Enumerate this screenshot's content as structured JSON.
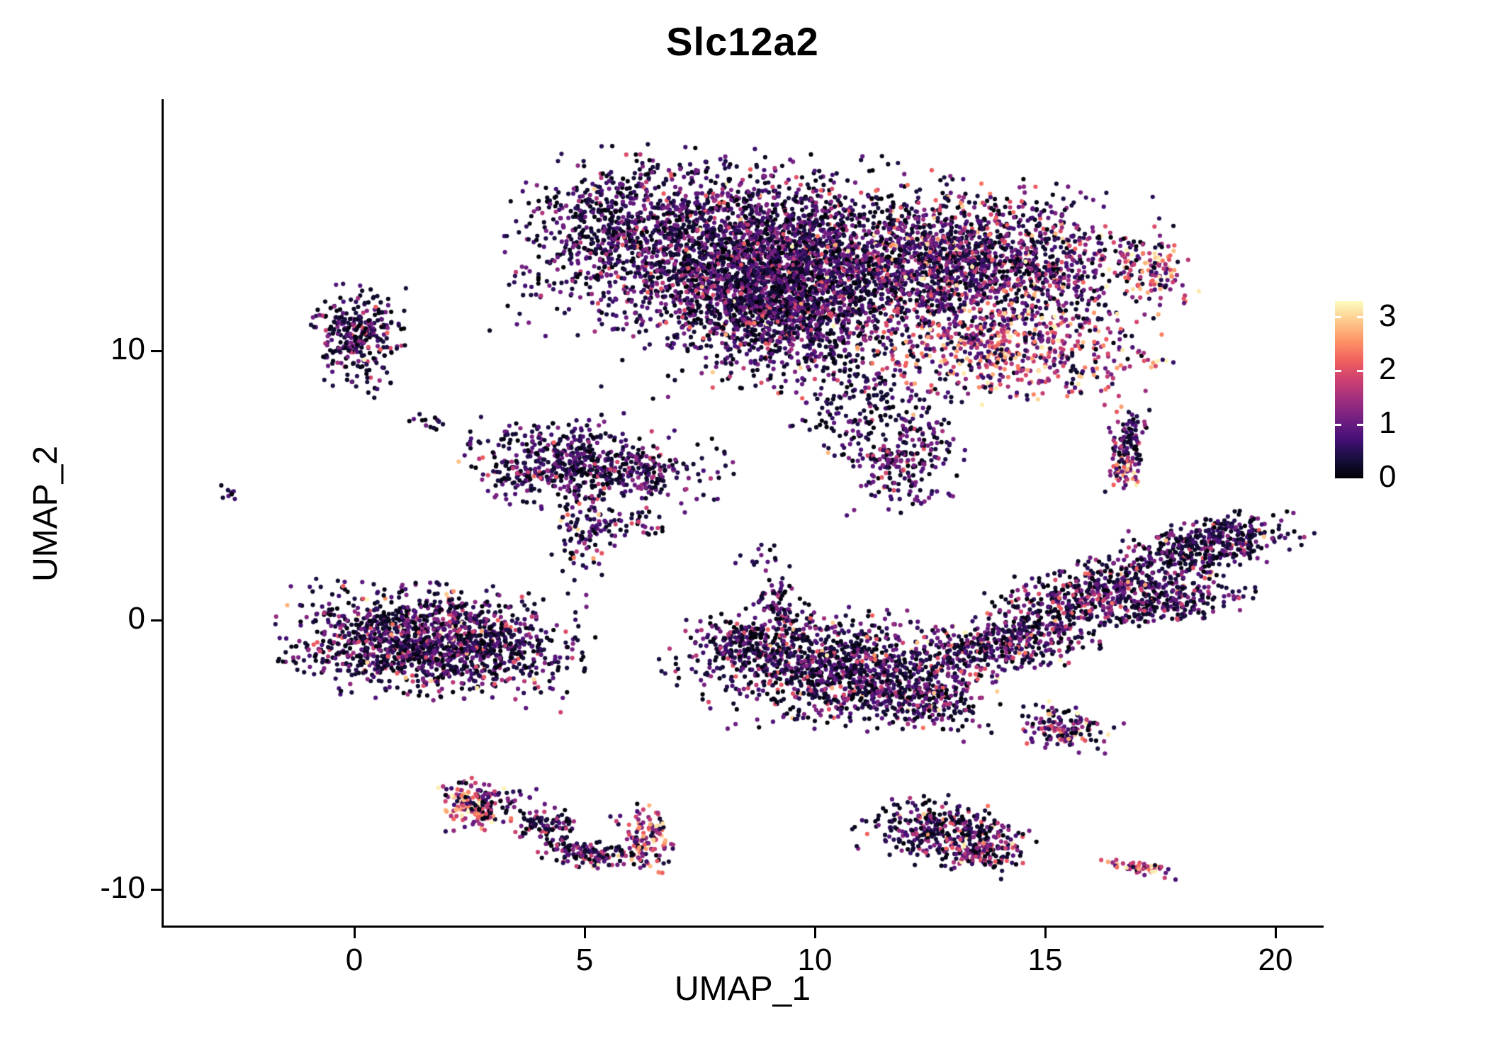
{
  "chart_data": {
    "type": "scatter",
    "title": "Slc12a2",
    "xlabel": "UMAP_1",
    "ylabel": "UMAP_2",
    "xlim": [
      -4.2,
      21.0
    ],
    "ylim": [
      -11.5,
      19.3
    ],
    "x_ticks": [
      0,
      5,
      10,
      15,
      20
    ],
    "y_ticks": [
      -10,
      0,
      10
    ],
    "grid": false,
    "point_radius_px": 3.1,
    "legend": {
      "position": "right",
      "label_values": [
        0,
        1,
        2,
        3
      ],
      "vmin": 0,
      "vmax": 3.3,
      "colormap": "magma"
    },
    "colormap_stops": [
      "#000004",
      "#180f3e",
      "#451077",
      "#721f81",
      "#9f2f7f",
      "#cd4071",
      "#f1605d",
      "#fd9567",
      "#fec98d",
      "#fcfdbf"
    ],
    "expression_bands": [
      [
        0,
        0.4
      ],
      [
        0.4,
        1.3
      ],
      [
        1.3,
        2.2
      ],
      [
        2.2,
        3.3
      ]
    ],
    "clusters": [
      {
        "name": "top-left-lobe",
        "cx": 8.2,
        "cy": 13.8,
        "sx": 2.0,
        "sy": 1.5,
        "rot": -5,
        "n": 2400,
        "w": [
          0.42,
          0.47,
          0.1,
          0.01
        ]
      },
      {
        "name": "top-left-lobe-core",
        "cx": 9.2,
        "cy": 11.8,
        "sx": 1.2,
        "sy": 1.3,
        "rot": 0,
        "n": 1300,
        "w": [
          0.45,
          0.45,
          0.09,
          0.01
        ]
      },
      {
        "name": "top-left-sparse-edge",
        "cx": 5.6,
        "cy": 14.6,
        "sx": 0.9,
        "sy": 1.2,
        "rot": 0,
        "n": 240,
        "w": [
          0.65,
          0.31,
          0.04,
          0
        ]
      },
      {
        "name": "top-right-lobe",
        "cx": 13.4,
        "cy": 13.2,
        "sx": 1.8,
        "sy": 1.3,
        "rot": -8,
        "n": 1700,
        "w": [
          0.34,
          0.41,
          0.2,
          0.05
        ]
      },
      {
        "name": "top-right-hotband",
        "cx": 14.2,
        "cy": 9.9,
        "sx": 1.5,
        "sy": 0.8,
        "rot": -10,
        "n": 520,
        "w": [
          0.12,
          0.26,
          0.37,
          0.25
        ]
      },
      {
        "name": "top-right-tip",
        "cx": 17.4,
        "cy": 13.0,
        "sx": 0.4,
        "sy": 0.55,
        "rot": 20,
        "n": 100,
        "w": [
          0.12,
          0.22,
          0.38,
          0.28
        ]
      },
      {
        "name": "top-mid-sparse",
        "cx": 10.6,
        "cy": 12.3,
        "sx": 2.3,
        "sy": 2.0,
        "rot": 0,
        "n": 480,
        "w": [
          0.55,
          0.35,
          0.08,
          0.02
        ]
      },
      {
        "name": "top-bottom-tail",
        "cx": 10.9,
        "cy": 7.9,
        "sx": 0.7,
        "sy": 1.1,
        "rot": 0,
        "n": 190,
        "w": [
          0.5,
          0.4,
          0.09,
          0.01
        ]
      },
      {
        "name": "top-bottom-blob",
        "cx": 11.9,
        "cy": 5.6,
        "sx": 0.55,
        "sy": 0.75,
        "rot": 0,
        "n": 170,
        "w": [
          0.45,
          0.44,
          0.1,
          0.01
        ]
      },
      {
        "name": "below-top-right-sparse",
        "cx": 12.4,
        "cy": 7.1,
        "sx": 0.45,
        "sy": 0.8,
        "rot": 0,
        "n": 60,
        "w": [
          0.55,
          0.37,
          0.08,
          0
        ]
      },
      {
        "name": "upper-left-small",
        "cx": 0.1,
        "cy": 10.5,
        "sx": 0.45,
        "sy": 0.85,
        "rot": 0,
        "n": 300,
        "w": [
          0.52,
          0.4,
          0.07,
          0.01
        ]
      },
      {
        "name": "below-upper-left-dots",
        "cx": 0.4,
        "cy": 8.5,
        "sx": 0.15,
        "sy": 0.25,
        "rot": 0,
        "n": 5,
        "w": [
          0.5,
          0.5,
          0,
          0
        ]
      },
      {
        "name": "far-left-dot",
        "cx": -2.7,
        "cy": 4.7,
        "sx": 0.09,
        "sy": 0.13,
        "rot": 0,
        "n": 8,
        "w": [
          0.4,
          0.5,
          0.1,
          0
        ]
      },
      {
        "name": "left-sparse-pair",
        "cx": 1.6,
        "cy": 7.4,
        "sx": 0.28,
        "sy": 0.18,
        "rot": 0,
        "n": 14,
        "w": [
          0.55,
          0.4,
          0.05,
          0
        ]
      },
      {
        "name": "mid-left-cluster",
        "cx": 4.6,
        "cy": 5.8,
        "sx": 0.95,
        "sy": 0.7,
        "rot": -5,
        "n": 540,
        "w": [
          0.48,
          0.42,
          0.09,
          0.01
        ]
      },
      {
        "name": "mid-left-east",
        "cx": 6.3,
        "cy": 5.4,
        "sx": 0.4,
        "sy": 0.45,
        "rot": 0,
        "n": 90,
        "w": [
          0.45,
          0.45,
          0.1,
          0
        ]
      },
      {
        "name": "mid-left-tail",
        "cx": 5.0,
        "cy": 3.3,
        "sx": 0.3,
        "sy": 0.9,
        "rot": 0,
        "n": 100,
        "w": [
          0.45,
          0.37,
          0.15,
          0.03
        ]
      },
      {
        "name": "mid-left-sparse-south",
        "cx": 6.0,
        "cy": 3.6,
        "sx": 0.4,
        "sy": 0.3,
        "rot": 0,
        "n": 40,
        "w": [
          0.55,
          0.38,
          0.07,
          0
        ]
      },
      {
        "name": "mid-left-sparse-east",
        "cx": 7.3,
        "cy": 5.5,
        "sx": 0.4,
        "sy": 0.7,
        "rot": 0,
        "n": 35,
        "w": [
          0.6,
          0.33,
          0.07,
          0
        ]
      },
      {
        "name": "left-main",
        "cx": 1.7,
        "cy": -0.8,
        "sx": 1.4,
        "sy": 0.9,
        "rot": -8,
        "n": 1500,
        "w": [
          0.5,
          0.39,
          0.09,
          0.02
        ]
      },
      {
        "name": "center-main",
        "cx": 10.4,
        "cy": -1.8,
        "sx": 1.2,
        "sy": 0.95,
        "rot": 0,
        "n": 950,
        "w": [
          0.48,
          0.39,
          0.11,
          0.02
        ]
      },
      {
        "name": "center-arm",
        "cx": 8.6,
        "cy": -0.7,
        "sx": 0.7,
        "sy": 0.5,
        "rot": 25,
        "n": 200,
        "w": [
          0.5,
          0.4,
          0.09,
          0.01
        ]
      },
      {
        "name": "center-spike",
        "cx": 9.2,
        "cy": 0.7,
        "sx": 0.22,
        "sy": 0.55,
        "rot": 0,
        "n": 60,
        "w": [
          0.55,
          0.4,
          0.05,
          0
        ]
      },
      {
        "name": "center-east",
        "cx": 12.3,
        "cy": -2.9,
        "sx": 0.8,
        "sy": 0.6,
        "rot": -15,
        "n": 280,
        "w": [
          0.42,
          0.4,
          0.14,
          0.04
        ]
      },
      {
        "name": "center-west-sparse",
        "cx": 7.4,
        "cy": -1.6,
        "sx": 0.5,
        "sy": 0.4,
        "rot": 0,
        "n": 25,
        "w": [
          0.6,
          0.35,
          0.05,
          0
        ]
      },
      {
        "name": "center-north-sparse",
        "cx": 8.9,
        "cy": 2.4,
        "sx": 0.3,
        "sy": 0.3,
        "rot": 0,
        "n": 14,
        "w": [
          0.55,
          0.4,
          0.05,
          0
        ]
      },
      {
        "name": "right-band-1",
        "cx": 14.1,
        "cy": -0.9,
        "sx": 1.1,
        "sy": 0.5,
        "rot": 22,
        "n": 460,
        "w": [
          0.44,
          0.4,
          0.13,
          0.03
        ]
      },
      {
        "name": "right-band-2",
        "cx": 16.4,
        "cy": 1.1,
        "sx": 1.25,
        "sy": 0.55,
        "rot": 25,
        "n": 560,
        "w": [
          0.47,
          0.4,
          0.11,
          0.02
        ]
      },
      {
        "name": "right-band-3",
        "cx": 18.6,
        "cy": 2.9,
        "sx": 0.9,
        "sy": 0.45,
        "rot": 20,
        "n": 360,
        "w": [
          0.5,
          0.4,
          0.09,
          0.01
        ]
      },
      {
        "name": "right-band-prong",
        "cx": 17.8,
        "cy": 0.5,
        "sx": 0.8,
        "sy": 0.3,
        "rot": 15,
        "n": 170,
        "w": [
          0.5,
          0.4,
          0.1,
          0
        ]
      },
      {
        "name": "right-small-column-top",
        "cx": 16.85,
        "cy": 6.7,
        "sx": 0.2,
        "sy": 0.5,
        "rot": 0,
        "n": 85,
        "w": [
          0.42,
          0.46,
          0.12,
          0
        ]
      },
      {
        "name": "right-small-column-bottom",
        "cx": 16.7,
        "cy": 5.4,
        "sx": 0.22,
        "sy": 0.35,
        "rot": 0,
        "n": 55,
        "w": [
          0.12,
          0.24,
          0.34,
          0.3
        ]
      },
      {
        "name": "right-lower-small",
        "cx": 15.4,
        "cy": -4.0,
        "sx": 0.5,
        "sy": 0.35,
        "rot": -20,
        "n": 140,
        "w": [
          0.3,
          0.3,
          0.25,
          0.15
        ]
      },
      {
        "name": "bottom-left-hot",
        "cx": 2.6,
        "cy": -6.9,
        "sx": 0.35,
        "sy": 0.42,
        "rot": 0,
        "n": 170,
        "w": [
          0.2,
          0.25,
          0.3,
          0.25
        ]
      },
      {
        "name": "bottom-left-neighbors",
        "cx": 3.5,
        "cy": -6.7,
        "sx": 0.4,
        "sy": 0.25,
        "rot": 0,
        "n": 18,
        "w": [
          0.55,
          0.35,
          0.1,
          0
        ]
      },
      {
        "name": "bottom-arc-1",
        "cx": 4.1,
        "cy": -7.6,
        "sx": 0.35,
        "sy": 0.3,
        "rot": -40,
        "n": 90,
        "w": [
          0.5,
          0.36,
          0.12,
          0.02
        ]
      },
      {
        "name": "bottom-arc-2",
        "cx": 5.1,
        "cy": -8.7,
        "sx": 0.5,
        "sy": 0.25,
        "rot": -12,
        "n": 130,
        "w": [
          0.45,
          0.36,
          0.15,
          0.04
        ]
      },
      {
        "name": "bottom-arc-3",
        "cx": 6.3,
        "cy": -8.1,
        "sx": 0.3,
        "sy": 0.55,
        "rot": 8,
        "n": 120,
        "w": [
          0.18,
          0.3,
          0.3,
          0.22
        ]
      },
      {
        "name": "bottom-center",
        "cx": 12.8,
        "cy": -7.9,
        "sx": 0.85,
        "sy": 0.55,
        "rot": -18,
        "n": 380,
        "w": [
          0.52,
          0.34,
          0.1,
          0.04
        ]
      },
      {
        "name": "bottom-center-tail",
        "cx": 13.6,
        "cy": -8.7,
        "sx": 0.38,
        "sy": 0.3,
        "rot": -20,
        "n": 85,
        "w": [
          0.3,
          0.35,
          0.25,
          0.1
        ]
      },
      {
        "name": "bottom-right-strip",
        "cx": 17.1,
        "cy": -9.2,
        "sx": 0.4,
        "sy": 0.13,
        "rot": -15,
        "n": 48,
        "w": [
          0.1,
          0.22,
          0.38,
          0.3
        ]
      }
    ]
  }
}
